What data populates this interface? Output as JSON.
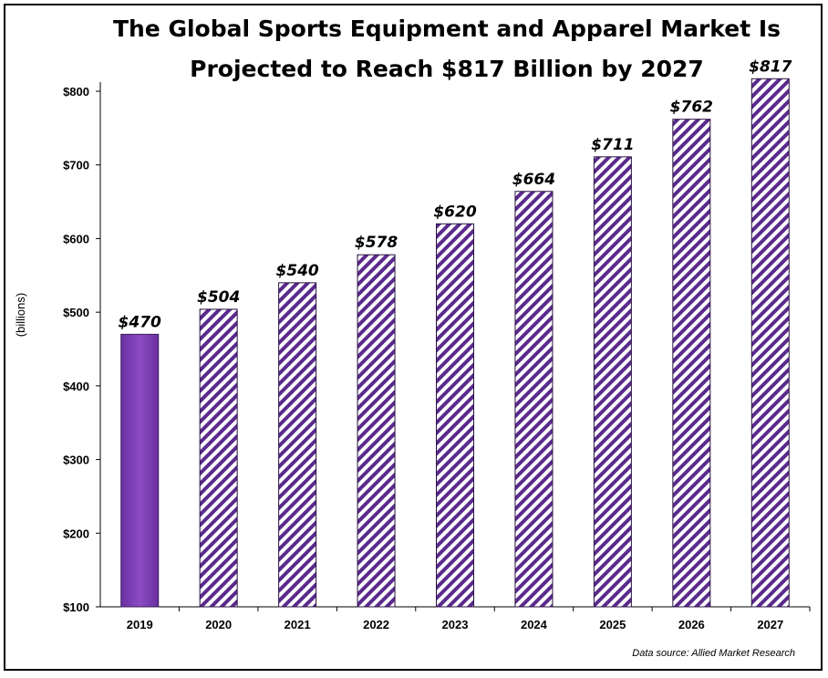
{
  "title": "The Global Sports Equipment and Apparel Market Is\nProjected to Reach $817 Billion by 2027",
  "source": "Data source:  Allied Market Research",
  "colors": {
    "bar_solid": "#7b3fb0",
    "hatch": "#5a2a8c",
    "axis": "#000000"
  },
  "chart_data": {
    "type": "bar",
    "title": "The Global Sports Equipment and Apparel Market Is Projected to Reach $817 Billion by 2027",
    "ylabel": "(billions)",
    "xlabel": "",
    "categories": [
      "2019",
      "2020",
      "2021",
      "2022",
      "2023",
      "2024",
      "2025",
      "2026",
      "2027"
    ],
    "values": [
      470,
      504,
      540,
      578,
      620,
      664,
      711,
      762,
      817
    ],
    "data_labels": [
      "$470",
      "$504",
      "$540",
      "$578",
      "$620",
      "$664",
      "$711",
      "$762",
      "$817"
    ],
    "styles": [
      "solid",
      "hatched",
      "hatched",
      "hatched",
      "hatched",
      "hatched",
      "hatched",
      "hatched",
      "hatched"
    ],
    "yticks": [
      100,
      200,
      300,
      400,
      500,
      600,
      700,
      800
    ],
    "ytick_labels": [
      "$100",
      "$200",
      "$300",
      "$400",
      "$500",
      "$600",
      "$700",
      "$800"
    ],
    "ylim": [
      100,
      820
    ],
    "grid": false,
    "legend": "none"
  }
}
